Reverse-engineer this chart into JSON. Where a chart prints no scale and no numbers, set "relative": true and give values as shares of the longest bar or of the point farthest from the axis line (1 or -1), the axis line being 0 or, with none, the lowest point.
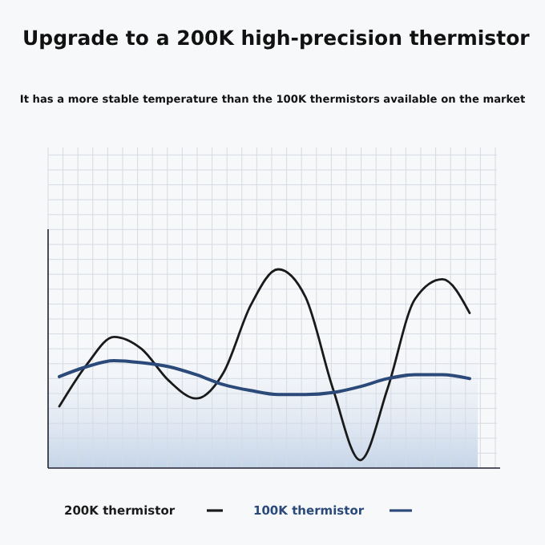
{
  "chart_data": {
    "type": "line",
    "title": "Upgrade to a 200K high-precision thermistor",
    "subtitle": "It has a more stable temperature than the 100K thermistors available on the market",
    "relative": true,
    "grid": true,
    "legend": "bottom",
    "categories": [
      null,
      null,
      null,
      null,
      null,
      null,
      null,
      null,
      null,
      null,
      null,
      null,
      null,
      null,
      null,
      null
    ],
    "series": [
      {
        "name": "200K thermistor",
        "color": "#1a1a1a",
        "values": [
          0.31,
          0.52,
          0.66,
          0.6,
          0.44,
          0.35,
          0.48,
          0.82,
          1,
          0.86,
          0.4,
          0.04,
          0.4,
          0.85,
          0.95,
          0.78
        ]
      },
      {
        "name": "100K thermistor",
        "color": "#2b4a7a",
        "values": [
          0.46,
          0.51,
          0.54,
          0.53,
          0.51,
          0.47,
          0.42,
          0.39,
          0.37,
          0.37,
          0.38,
          0.41,
          0.45,
          0.47,
          0.47,
          0.45
        ]
      }
    ]
  }
}
